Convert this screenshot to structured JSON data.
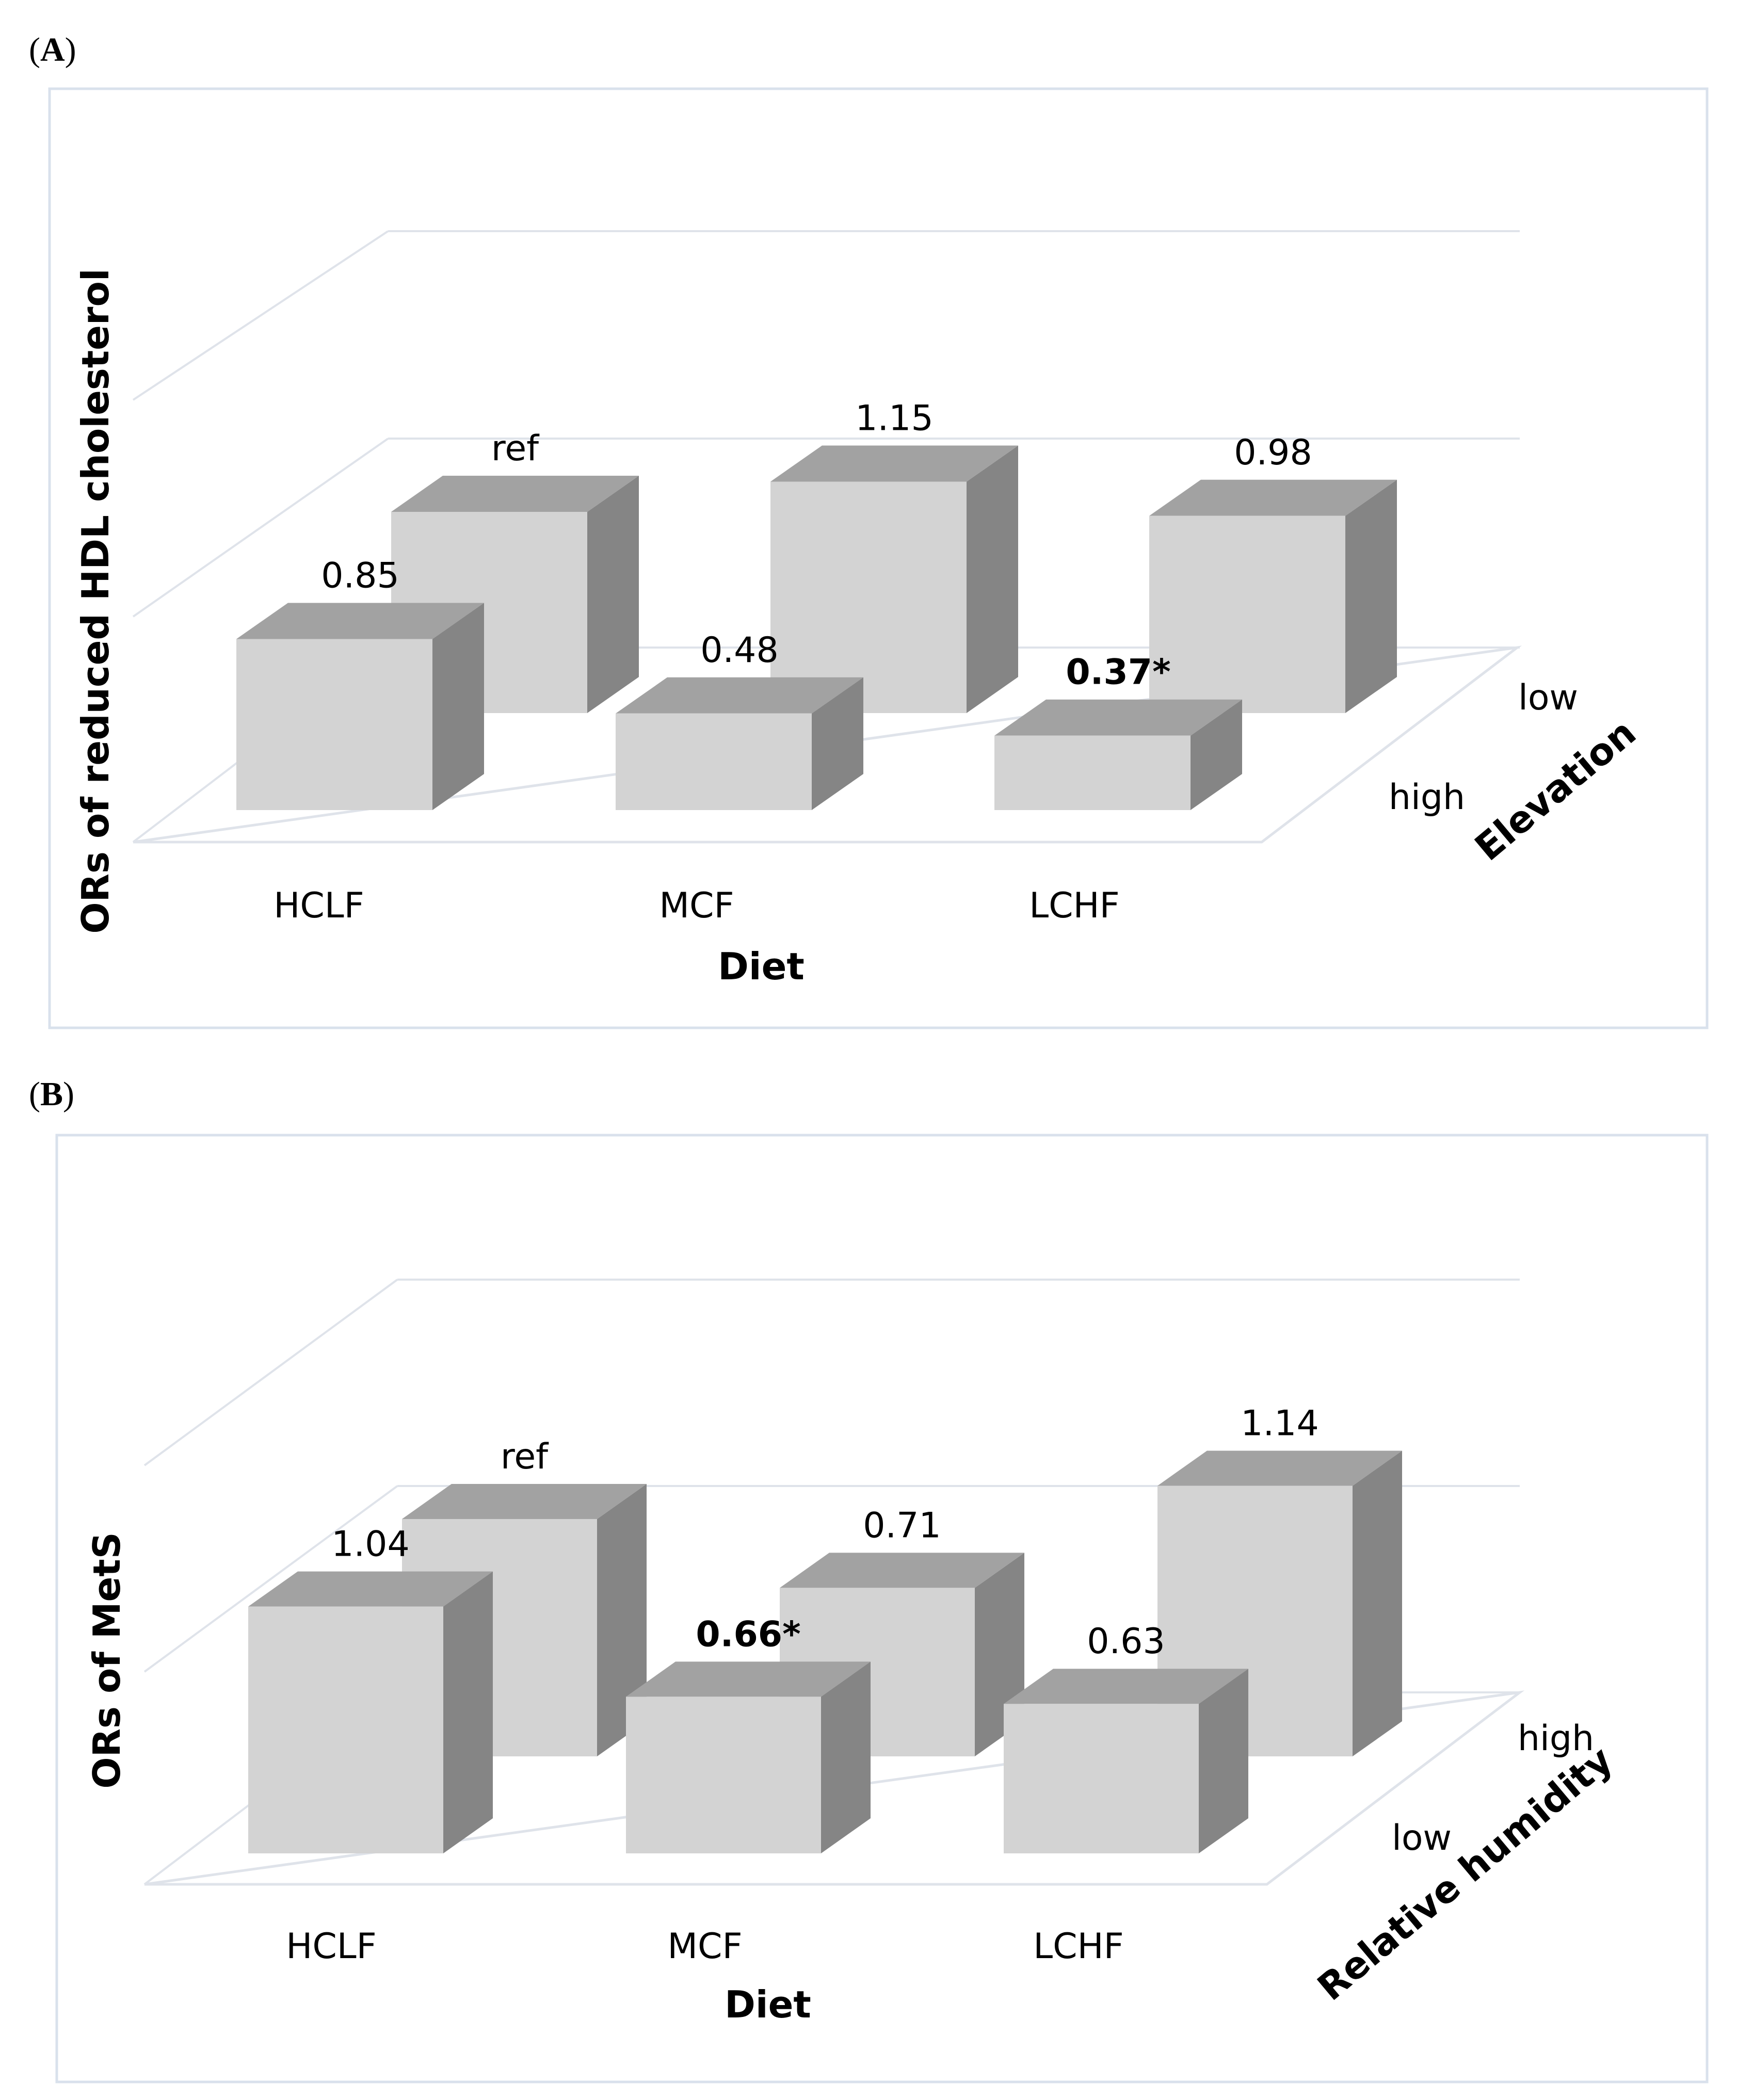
{
  "panels": [
    {
      "panel_label": "A",
      "chart_data": {
        "type": "bar",
        "subtype": "3d-column",
        "title": "",
        "xlabel": "Diet",
        "ylabel": "ORs of reduced HDL cholesterol",
        "zlabel": "Elevation",
        "categories": [
          "HCLF",
          "MCF",
          "LCHF"
        ],
        "series": [
          {
            "name": "high",
            "values": [
              0.85,
              0.48,
              0.37
            ],
            "labels": [
              "0.85",
              "0.48",
              "0.37*"
            ],
            "bold": [
              false,
              false,
              true
            ]
          },
          {
            "name": "low",
            "values": [
              1.0,
              1.15,
              0.98
            ],
            "labels": [
              "ref",
              "1.15",
              "0.98"
            ],
            "bold": [
              false,
              false,
              false
            ]
          }
        ],
        "ylim": [
          0,
          2
        ],
        "grid": true
      }
    },
    {
      "panel_label": "B",
      "chart_data": {
        "type": "bar",
        "subtype": "3d-column",
        "title": "",
        "xlabel": "Diet",
        "ylabel": "ORs of MetS",
        "zlabel": "Relative humidity",
        "categories": [
          "HCLF",
          "MCF",
          "LCHF"
        ],
        "series": [
          {
            "name": "low",
            "values": [
              1.04,
              0.66,
              0.63
            ],
            "labels": [
              "1.04",
              "0.66*",
              "0.63"
            ],
            "bold": [
              false,
              true,
              false
            ]
          },
          {
            "name": "high",
            "values": [
              1.0,
              0.71,
              1.14
            ],
            "labels": [
              "ref",
              "0.71",
              "1.14"
            ],
            "bold": [
              false,
              false,
              false
            ]
          }
        ],
        "ylim": [
          0,
          1.5
        ],
        "grid": true
      }
    }
  ],
  "colors": {
    "front_face": "#d3d3d3",
    "top_face": "#a2a2a2",
    "side_face": "#858585",
    "grid": "#dfe3ea",
    "frame": "#d9e1ec"
  }
}
